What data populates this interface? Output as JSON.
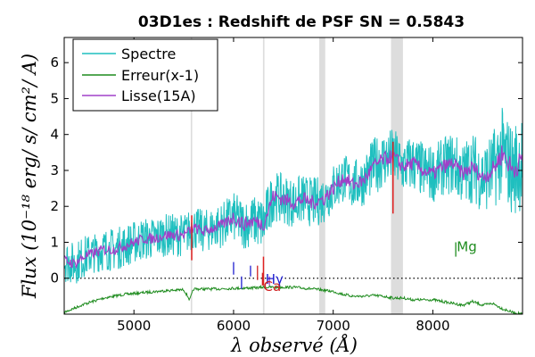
{
  "chart_data": {
    "type": "line",
    "title": "03D1es : Redshift de PSF SN = 0.5843",
    "xlabel": "λ observé (Å)",
    "ylabel": "Flux (10⁻¹⁸ erg/ s/ cm²/ A)",
    "xlim": [
      4300,
      8900
    ],
    "ylim": [
      -1,
      6.7
    ],
    "x_ticks": [
      5000,
      6000,
      7000,
      8000
    ],
    "y_ticks": [
      0,
      1,
      2,
      3,
      4,
      5,
      6
    ],
    "x_tick_labels": [
      "5000",
      "6000",
      "7000",
      "8000"
    ],
    "y_tick_labels": [
      "0",
      "1",
      "2",
      "3",
      "4",
      "5",
      "6"
    ],
    "grid": false,
    "legend_placement": "top-left",
    "zero_line": "dotted",
    "series": [
      {
        "name": "Spectre",
        "color": "#1fbfbf",
        "x": [
          4300,
          4400,
          4500,
          4600,
          4700,
          4800,
          4900,
          5000,
          5100,
          5200,
          5300,
          5400,
          5500,
          5600,
          5700,
          5800,
          5900,
          6000,
          6100,
          6200,
          6300,
          6400,
          6500,
          6600,
          6700,
          6800,
          6900,
          7000,
          7100,
          7200,
          7300,
          7400,
          7500,
          7600,
          7700,
          7800,
          7900,
          8000,
          8100,
          8200,
          8300,
          8400,
          8500,
          8600,
          8700,
          8800,
          8900
        ],
        "values": [
          0.5,
          0.4,
          0.6,
          0.7,
          0.8,
          0.8,
          0.9,
          1.0,
          1.1,
          1.1,
          1.2,
          1.2,
          1.2,
          1.4,
          1.3,
          1.4,
          1.5,
          1.7,
          1.5,
          1.6,
          1.5,
          2.3,
          2.2,
          2.1,
          2.2,
          2.1,
          2.2,
          2.5,
          2.8,
          2.6,
          2.7,
          3.1,
          3.3,
          3.4,
          3.1,
          3.2,
          3.0,
          2.9,
          3.1,
          3.2,
          2.9,
          3.1,
          2.8,
          3.0,
          3.5,
          3.0,
          3.3
        ],
        "noise": [
          0.6,
          0.6,
          0.6,
          0.55,
          0.6,
          0.6,
          0.6,
          0.6,
          0.6,
          0.6,
          0.6,
          0.6,
          0.6,
          0.6,
          0.6,
          0.6,
          0.65,
          0.7,
          0.7,
          0.7,
          0.8,
          0.7,
          0.7,
          0.7,
          0.7,
          0.7,
          0.7,
          0.7,
          0.7,
          0.7,
          0.7,
          0.8,
          0.8,
          0.8,
          0.8,
          0.8,
          0.8,
          0.8,
          0.8,
          0.9,
          0.9,
          1.0,
          1.0,
          1.1,
          1.3,
          1.3,
          1.4
        ]
      },
      {
        "name": "Erreur(x-1)",
        "color": "#1f8c1f",
        "x": [
          4300,
          4500,
          4700,
          4900,
          5100,
          5300,
          5500,
          5560,
          5600,
          5800,
          6000,
          6200,
          6300,
          6400,
          6600,
          6800,
          6900,
          7000,
          7100,
          7200,
          7300,
          7400,
          7500,
          7600,
          7700,
          7800,
          7900,
          8000,
          8100,
          8200,
          8300,
          8400,
          8500,
          8600,
          8700,
          8800,
          8900
        ],
        "values": [
          -0.95,
          -0.72,
          -0.55,
          -0.45,
          -0.4,
          -0.35,
          -0.32,
          -0.6,
          -0.3,
          -0.3,
          -0.28,
          -0.27,
          -0.25,
          -0.25,
          -0.25,
          -0.3,
          -0.33,
          -0.37,
          -0.45,
          -0.5,
          -0.5,
          -0.48,
          -0.5,
          -0.55,
          -0.55,
          -0.6,
          -0.6,
          -0.6,
          -0.65,
          -0.7,
          -0.75,
          -0.65,
          -0.75,
          -0.7,
          -0.85,
          -0.95,
          -1.0
        ]
      },
      {
        "name": "Lisse(15A)",
        "color": "#a040c8",
        "x": [
          4300,
          4400,
          4500,
          4600,
          4700,
          4800,
          4900,
          5000,
          5100,
          5200,
          5300,
          5400,
          5500,
          5600,
          5700,
          5800,
          5900,
          6000,
          6100,
          6200,
          6300,
          6400,
          6500,
          6600,
          6700,
          6800,
          6900,
          7000,
          7100,
          7200,
          7300,
          7400,
          7500,
          7600,
          7700,
          7800,
          7900,
          8000,
          8100,
          8200,
          8300,
          8400,
          8500,
          8600,
          8700,
          8800,
          8900
        ],
        "values": [
          0.5,
          0.4,
          0.6,
          0.7,
          0.8,
          0.8,
          0.9,
          1.0,
          1.1,
          1.1,
          1.2,
          1.2,
          1.2,
          1.4,
          1.3,
          1.4,
          1.5,
          1.7,
          1.5,
          1.6,
          1.5,
          2.3,
          2.2,
          2.1,
          2.2,
          2.1,
          2.2,
          2.5,
          2.8,
          2.6,
          2.7,
          3.1,
          3.3,
          3.4,
          3.1,
          3.2,
          3.0,
          2.9,
          3.1,
          3.2,
          2.9,
          3.1,
          2.8,
          3.0,
          3.5,
          3.0,
          3.3
        ],
        "noise": [
          0.15,
          0.15,
          0.15,
          0.15,
          0.15,
          0.15,
          0.15,
          0.15,
          0.15,
          0.15,
          0.15,
          0.15,
          0.15,
          0.15,
          0.15,
          0.15,
          0.15,
          0.2,
          0.2,
          0.2,
          0.2,
          0.2,
          0.2,
          0.2,
          0.2,
          0.2,
          0.2,
          0.2,
          0.2,
          0.2,
          0.2,
          0.2,
          0.2,
          0.2,
          0.2,
          0.2,
          0.2,
          0.2,
          0.2,
          0.2,
          0.2,
          0.2,
          0.2,
          0.25,
          0.3,
          0.3,
          0.3
        ]
      }
    ],
    "shaded_bands": [
      {
        "x": [
          5570,
          5585
        ],
        "color": "#dddddd"
      },
      {
        "x": [
          6295,
          6310
        ],
        "color": "#dddddd"
      },
      {
        "x": [
          6860,
          6920
        ],
        "color": "#dddddd"
      },
      {
        "x": [
          7580,
          7700
        ],
        "color": "#dddddd"
      }
    ],
    "red_markers": [
      {
        "x": 5580,
        "y": [
          0.5,
          1.75
        ]
      },
      {
        "x": 7600,
        "y": [
          1.8,
          3.8
        ]
      },
      {
        "x": 6300,
        "y": [
          -0.2,
          0.6
        ]
      }
    ],
    "line_markers": [
      {
        "x": 6000,
        "y": [
          0.1,
          0.45
        ],
        "color": "#1f1fd0"
      },
      {
        "x": 6080,
        "y": [
          -0.3,
          0.05
        ],
        "color": "#1f1fd0"
      },
      {
        "x": 6170,
        "y": [
          0.05,
          0.35
        ],
        "color": "#1f1fd0"
      },
      {
        "x": 6240,
        "y": [
          -0.05,
          0.35
        ],
        "color": "#d01f1f"
      },
      {
        "x": 6290,
        "y": [
          -0.2,
          0.15
        ],
        "color": "#d01f1f"
      },
      {
        "x": 6360,
        "y": [
          -0.2,
          0.05
        ],
        "color": "#a040c8"
      },
      {
        "x": 8230,
        "y": [
          0.6,
          1.0
        ],
        "color": "#1f8c1f"
      }
    ],
    "annotations": [
      {
        "text": "Hγ",
        "x": 6320,
        "y": -0.15,
        "color": "#1f1fd0"
      },
      {
        "text": "Ca",
        "x": 6300,
        "y": -0.35,
        "color": "#d01f1f"
      },
      {
        "text": "Mg",
        "x": 8240,
        "y": 0.75,
        "color": "#1f8c1f"
      }
    ]
  }
}
